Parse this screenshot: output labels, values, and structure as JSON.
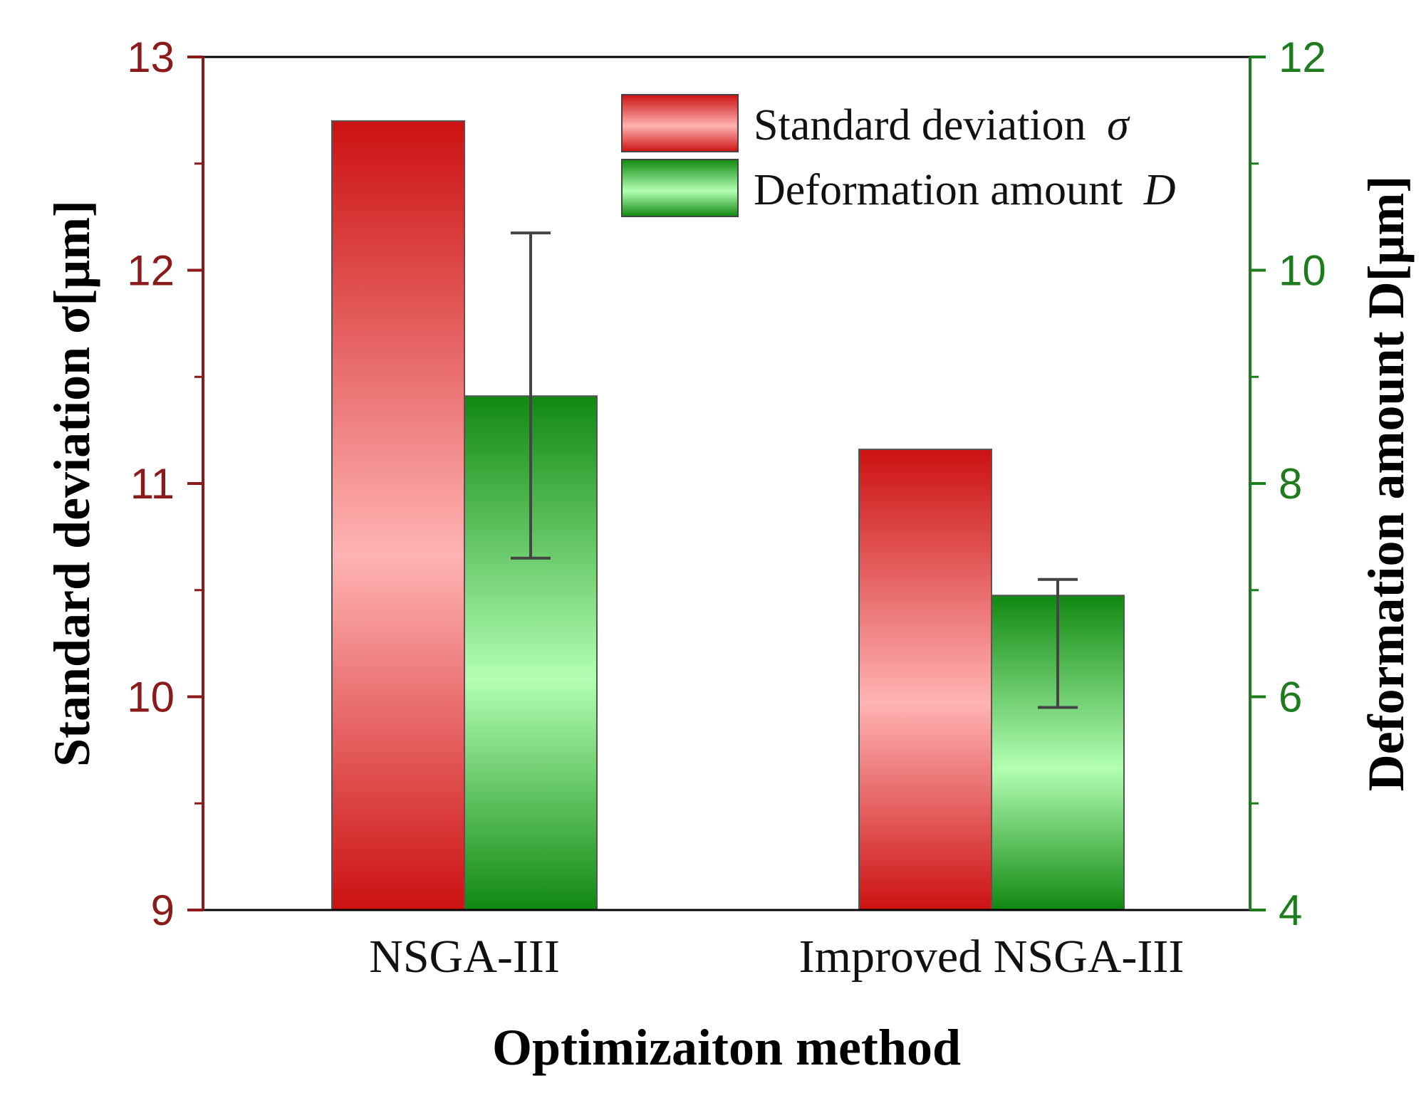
{
  "chart_data": {
    "type": "bar",
    "categories": [
      "NSGA-III",
      "Improved NSGA-III"
    ],
    "series": [
      {
        "name": "Standard deviation",
        "symbol": "σ",
        "axis": "left",
        "values": [
          12.7,
          11.16
        ],
        "color": "#cc1111",
        "color_light": "#ffb3b3"
      },
      {
        "name": "Deformation amount",
        "symbol": "D",
        "axis": "right",
        "values": [
          8.82,
          6.95
        ],
        "error_low": [
          7.3,
          5.9
        ],
        "error_high": [
          10.35,
          7.1
        ],
        "color": "#118811",
        "color_light": "#b3ffb3"
      }
    ],
    "left_axis": {
      "label": "Standard deviation σ[μm]",
      "ylim": [
        9,
        13
      ],
      "ticks": [
        "9",
        "10",
        "11",
        "12",
        "13"
      ],
      "color": "#8b1a1a"
    },
    "right_axis": {
      "label": "Deformation amount D[μm]",
      "ylim": [
        4,
        12
      ],
      "ticks": [
        "4",
        "6",
        "8",
        "10",
        "12"
      ],
      "color": "#1e7b1e"
    },
    "xlabel": "Optimizaiton method",
    "legend_position": "top-right"
  }
}
